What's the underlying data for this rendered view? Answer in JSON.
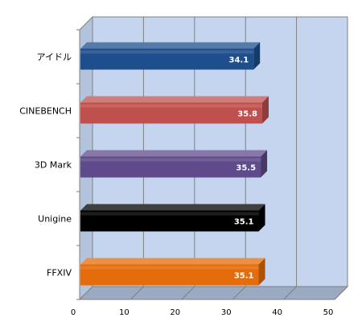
{
  "chart_data": {
    "type": "bar",
    "orientation": "horizontal",
    "style": "3d",
    "categories": [
      "アイドル",
      "CINEBENCH",
      "3D Mark",
      "Unigine",
      "FFXIV"
    ],
    "values": [
      34.1,
      35.8,
      35.5,
      35.1,
      35.1
    ],
    "data_labels": [
      "34.1",
      "35.8",
      "35.5",
      "35.1",
      "35.1"
    ],
    "bar_colors": [
      "#1f4e8c",
      "#c0504d",
      "#5f4b8b",
      "#000000",
      "#e46c0a"
    ],
    "xlim": [
      0,
      50
    ],
    "xticks": [
      0,
      10,
      20,
      30,
      40,
      50
    ],
    "xtick_labels": [
      "0",
      "10",
      "20",
      "30",
      "40",
      "50"
    ],
    "grid": true,
    "plot_background": "#c5d5ef",
    "legend": "none",
    "title": "",
    "xlabel": "",
    "ylabel": ""
  }
}
